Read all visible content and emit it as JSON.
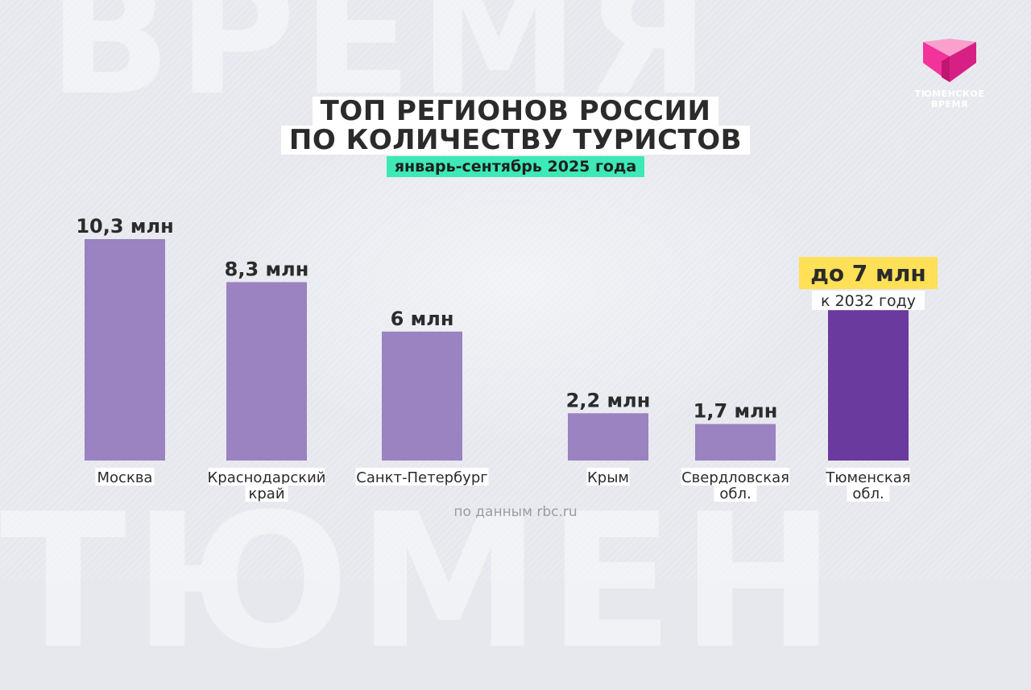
{
  "brand": {
    "logo_line1": "ТЮМЕНСКОЕ",
    "logo_line2": "ВРЕМЯ",
    "logo_color": "#f2349a",
    "watermark_top": "ВРЕМЯ",
    "watermark_bottom": "ТЮМЕН"
  },
  "title_line1": "ТОП РЕГИОНОВ РОССИИ",
  "title_line2": "ПО КОЛИЧЕСТВУ ТУРИСТОВ",
  "subtitle": "январь-сентябрь 2025 года",
  "source": "по данным rbc.ru",
  "chart_data": {
    "type": "bar",
    "unit": "млн",
    "categories": [
      "Москва",
      "Краснодарский край",
      "Санкт-Петербург",
      "Крым",
      "Свердловская обл.",
      "Тюменская обл."
    ],
    "category_lines": [
      [
        "Москва"
      ],
      [
        "Краснодарский",
        "край"
      ],
      [
        "Санкт-Петербург"
      ],
      [
        "Крым"
      ],
      [
        "Свердловская",
        "обл."
      ],
      [
        "Тюменская",
        "обл."
      ]
    ],
    "values": [
      10.3,
      8.3,
      6,
      2.2,
      1.7,
      7
    ],
    "value_labels": [
      "10,3 млн",
      "8,3 млн",
      "6 млн",
      "2,2 млн",
      "1,7 млн",
      "до 7 млн"
    ],
    "highlight": {
      "index": 5,
      "note": "к 2032 году",
      "label_bg": "#ffe057",
      "bar_color": "#6a3a9e"
    },
    "bar_color": "#9b82c0",
    "ylim": [
      0,
      10.3
    ],
    "grid": false,
    "legend": "none"
  }
}
